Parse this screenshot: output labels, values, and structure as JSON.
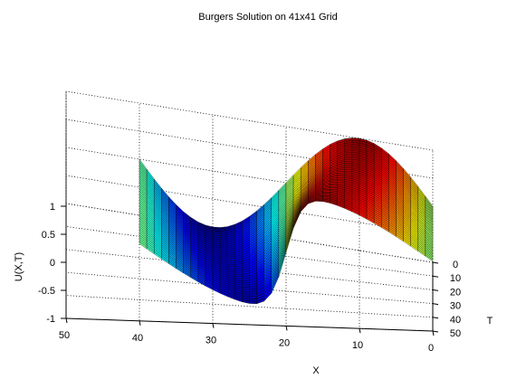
{
  "chart_data": {
    "type": "surface",
    "title": "Burgers Solution on 41x41 Grid",
    "xlabel": "X",
    "ylabel": "T",
    "zlabel": "U(X,T)",
    "grid_points": [
      41,
      41
    ],
    "xlim": [
      0,
      50
    ],
    "tlim": [
      0,
      50
    ],
    "zlim": [
      -1,
      1
    ],
    "x_ticks": [
      "0",
      "10",
      "20",
      "30",
      "40",
      "50"
    ],
    "t_ticks": [
      "0",
      "10",
      "20",
      "30",
      "40",
      "50"
    ],
    "z_ticks": [
      "-1",
      "-0.5",
      "0",
      "0.5",
      "1"
    ],
    "surface": "U(X,T) = sin(2πX/40), steepening to a shock near X≈20 as T increases",
    "x_range_plotted": [
      0,
      40
    ],
    "t_range_plotted": [
      0,
      40
    ],
    "colormap": "jet",
    "grid": true
  }
}
